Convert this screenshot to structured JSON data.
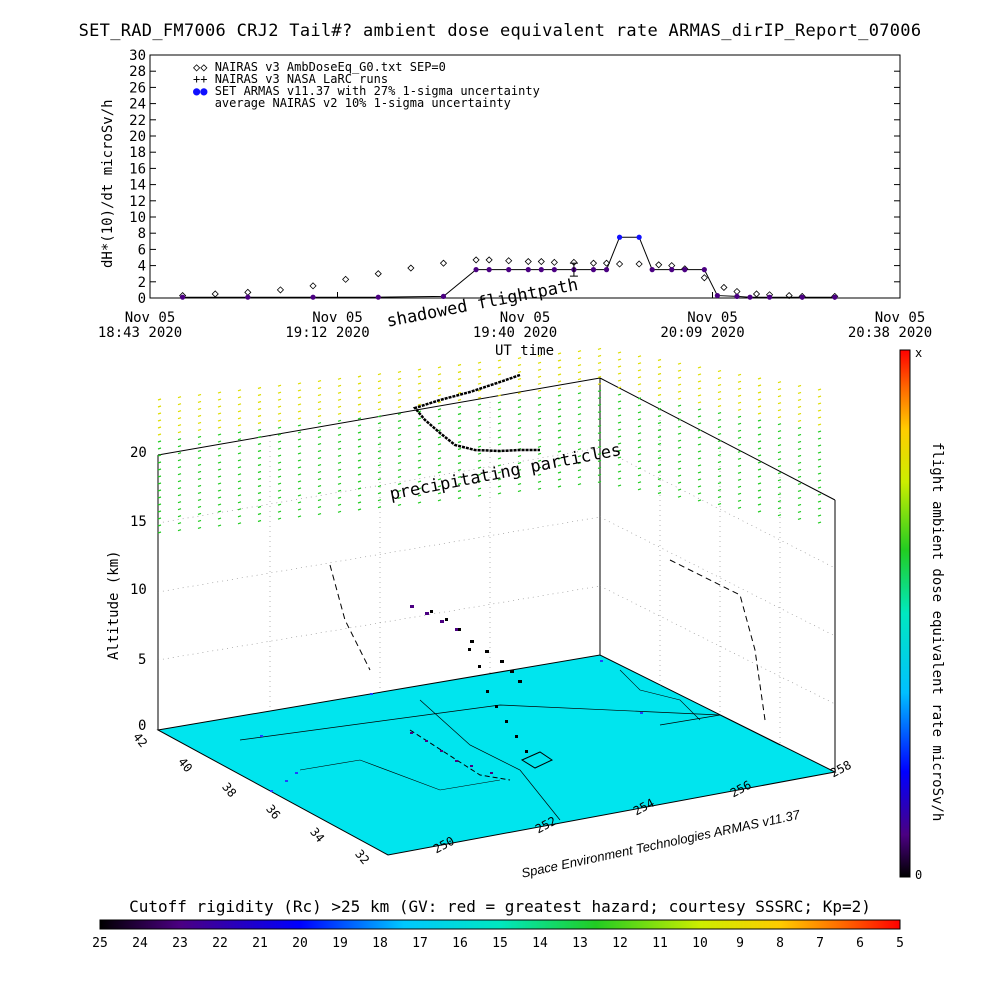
{
  "title": "SET_RAD_FM7006  CRJ2 Tail#? ambient dose equivalent rate ARMAS_dirIP_Report_07006",
  "colors": {
    "nairas_v3": "#000000",
    "armas": "#1010ff",
    "armas_fill": "#4b0082",
    "ground": "#00e5ee",
    "precip_low": "#22cc22",
    "precip_high": "#dddd00"
  },
  "chart_data": [
    {
      "type": "line",
      "title": "SET_RAD_FM7006  CRJ2 Tail#? ambient dose equivalent rate ARMAS_dirIP_Report_07006",
      "ylabel": "dH*(10)/dt microSv/h",
      "xlabel": "UT time",
      "ylim": [
        0,
        30
      ],
      "y_ticks": [
        "0",
        "2",
        "4",
        "6",
        "8",
        "10",
        "12",
        "14",
        "16",
        "18",
        "20",
        "22",
        "24",
        "26",
        "28",
        "30"
      ],
      "x_ticks": [
        {
          "l1": "Nov 05",
          "l2": "18:43 2020"
        },
        {
          "l1": "Nov 05",
          "l2": "19:12 2020"
        },
        {
          "l1": "Nov 05",
          "l2": "19:40 2020"
        },
        {
          "l1": "Nov 05",
          "l2": "20:09 2020"
        },
        {
          "l1": "Nov 05",
          "l2": "20:38 2020"
        }
      ],
      "legend": [
        "NAIRAS v3 AmbDoseEq_G0.txt SEP=0",
        "NAIRAS v3 NASA LaRC runs",
        "SET ARMAS v11.37 with 27% 1-sigma uncertainty",
        "average NAIRAS v2 10% 1-sigma uncertainty"
      ],
      "x_range_minutes": [
        0,
        115
      ],
      "series": [
        {
          "name": "NAIRAS v3 AmbDoseEq_G0.txt SEP=0",
          "style": "diamond",
          "x": [
            5,
            10,
            15,
            20,
            25,
            30,
            35,
            40,
            45,
            50,
            52,
            55,
            58,
            60,
            62,
            65,
            68,
            70,
            72,
            75,
            78,
            80,
            82,
            85,
            88,
            90,
            93,
            95,
            98,
            100,
            105
          ],
          "y": [
            0.3,
            0.5,
            0.7,
            1.0,
            1.5,
            2.3,
            3.0,
            3.7,
            4.3,
            4.7,
            4.7,
            4.6,
            4.5,
            4.5,
            4.4,
            4.4,
            4.3,
            4.3,
            4.2,
            4.2,
            4.1,
            4.0,
            3.6,
            2.5,
            1.3,
            0.8,
            0.5,
            0.4,
            0.3,
            0.2,
            0.2
          ]
        },
        {
          "name": "SET ARMAS v11.37 with 27% 1-sigma uncertainty",
          "style": "filled",
          "x": [
            5,
            15,
            25,
            35,
            45,
            50,
            52,
            55,
            58,
            60,
            62,
            65,
            68,
            70,
            72,
            75,
            77,
            80,
            82,
            85,
            87,
            90,
            92,
            95,
            100,
            105
          ],
          "y": [
            0.1,
            0.1,
            0.1,
            0.1,
            0.2,
            3.5,
            3.5,
            3.5,
            3.5,
            3.5,
            3.5,
            3.5,
            3.5,
            3.5,
            7.5,
            7.5,
            3.5,
            3.5,
            3.5,
            3.5,
            0.3,
            0.2,
            0.1,
            0.1,
            0.1,
            0.1
          ]
        },
        {
          "name": "average NAIRAS v2 10% 1-sigma uncertainty",
          "style": "errorbar",
          "x": [
            65
          ],
          "y": [
            3.5
          ],
          "err": [
            0.8
          ]
        }
      ]
    },
    {
      "type": "scatter",
      "title": "",
      "zlabel": "Altitude (km)",
      "z_ticks": [
        "0",
        "5",
        "10",
        "15",
        "20"
      ],
      "y_axis_ticks": [
        "42",
        "40",
        "38",
        "36",
        "34",
        "32"
      ],
      "x_axis_ticks": [
        "250",
        "252",
        "254",
        "256",
        "258"
      ],
      "annotations": [
        "shadowed flightpath",
        "precipitating particles"
      ],
      "credit": "Space Environment Technologies ARMAS v11.37",
      "right_colorbar": {
        "label": "flight ambient dose equivalent rate microSv/h",
        "top": "x",
        "bottom": "0"
      },
      "bottom_colorbar": {
        "label": "Cutoff rigidity (Rc) >25 km (GV: red = greatest hazard; courtesy SSSRC; Kp=2)",
        "ticks": [
          "25",
          "24",
          "23",
          "22",
          "21",
          "20",
          "19",
          "18",
          "17",
          "16",
          "15",
          "14",
          "13",
          "12",
          "11",
          "10",
          "9",
          "8",
          "7",
          "6",
          "5"
        ]
      }
    }
  ]
}
